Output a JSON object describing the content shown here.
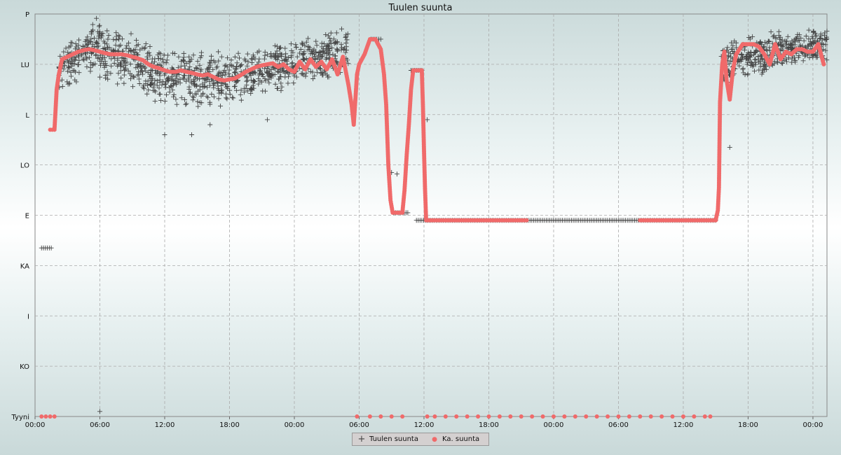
{
  "chart_data": {
    "type": "scatter",
    "title": "Tuulen suunta",
    "y_categories": [
      "Tyyni",
      "KO",
      "I",
      "KA",
      "E",
      "LO",
      "L",
      "LU",
      "P"
    ],
    "x_tick_labels": [
      "00:00",
      "06:00",
      "12:00",
      "18:00",
      "00:00",
      "06:00",
      "12:00",
      "18:00",
      "00:00",
      "06:00",
      "12:00",
      "18:00",
      "00:00"
    ],
    "x_unit": "hours from start",
    "xlim": [
      0,
      73.3
    ],
    "ylim": [
      0,
      8
    ],
    "grid": true,
    "legend_position": "bottom-center",
    "series": [
      {
        "name": "Tuulen suunta",
        "marker": "plus",
        "color": "#444444",
        "segments": [
          {
            "x": [
              0.6,
              1.5
            ],
            "y": [
              3.35,
              3.35
            ],
            "style": "flat"
          },
          {
            "x": [
              2.2,
              6.0
            ],
            "y": [
              6.9,
              7.45
            ],
            "style": "noisy",
            "spread": 0.55
          },
          {
            "x": [
              6.0,
              12.0
            ],
            "y": [
              7.3,
              6.75
            ],
            "style": "noisy",
            "spread": 0.6
          },
          {
            "x": [
              12.0,
              18.0
            ],
            "y": [
              6.75,
              6.7
            ],
            "style": "noisy",
            "spread": 0.6
          },
          {
            "x": [
              18.0,
              24.0
            ],
            "y": [
              6.7,
              7.0
            ],
            "style": "noisy",
            "spread": 0.5
          },
          {
            "x": [
              24.0,
              29.0
            ],
            "y": [
              7.0,
              7.3
            ],
            "style": "noisy",
            "spread": 0.5
          },
          {
            "x": [
              31.1,
              32.0
            ],
            "y": [
              7.5,
              7.5
            ],
            "style": "flat"
          },
          {
            "x": [
              33.2,
              34.5
            ],
            "y": [
              4.05,
              4.05
            ],
            "style": "flat"
          },
          {
            "x": [
              34.8,
              35.8
            ],
            "y": [
              6.88,
              6.88
            ],
            "style": "flat"
          },
          {
            "x": [
              35.3,
              63.0
            ],
            "y": [
              3.9,
              3.9
            ],
            "style": "flat"
          },
          {
            "x": [
              63.5,
              69.0
            ],
            "y": [
              7.0,
              7.3
            ],
            "style": "noisy",
            "spread": 0.45
          },
          {
            "x": [
              69.0,
              73.3
            ],
            "y": [
              7.3,
              7.4
            ],
            "style": "noisy",
            "spread": 0.35
          }
        ],
        "outliers": [
          {
            "x": 6.0,
            "y": 0.1
          },
          {
            "x": 12.0,
            "y": 5.6
          },
          {
            "x": 14.5,
            "y": 5.6
          },
          {
            "x": 16.2,
            "y": 5.8
          },
          {
            "x": 21.5,
            "y": 5.9
          },
          {
            "x": 64.3,
            "y": 5.35
          },
          {
            "x": 33.0,
            "y": 4.85
          },
          {
            "x": 33.5,
            "y": 4.82
          },
          {
            "x": 36.3,
            "y": 5.9
          }
        ]
      },
      {
        "name": "Ka. suunta",
        "marker": "dot",
        "color": "#f06a6a",
        "points": [
          [
            0.6,
            0.0
          ],
          [
            1.0,
            0.0
          ],
          [
            1.4,
            0.0
          ],
          [
            1.8,
            0.0
          ],
          [
            1.4,
            5.7
          ],
          [
            1.8,
            5.7
          ],
          [
            2.0,
            6.5
          ],
          [
            2.2,
            6.8
          ],
          [
            2.5,
            7.1
          ],
          [
            3.0,
            7.15
          ],
          [
            3.5,
            7.2
          ],
          [
            4.0,
            7.25
          ],
          [
            4.5,
            7.28
          ],
          [
            5.0,
            7.3
          ],
          [
            5.5,
            7.28
          ],
          [
            6.0,
            7.25
          ],
          [
            6.5,
            7.22
          ],
          [
            7.0,
            7.2
          ],
          [
            7.5,
            7.2
          ],
          [
            8.0,
            7.2
          ],
          [
            8.5,
            7.18
          ],
          [
            9.0,
            7.15
          ],
          [
            9.5,
            7.12
          ],
          [
            10.0,
            7.08
          ],
          [
            10.5,
            7.0
          ],
          [
            11.0,
            6.95
          ],
          [
            11.5,
            6.92
          ],
          [
            12.0,
            6.88
          ],
          [
            12.5,
            6.85
          ],
          [
            13.0,
            6.85
          ],
          [
            13.5,
            6.88
          ],
          [
            14.0,
            6.85
          ],
          [
            14.5,
            6.83
          ],
          [
            15.0,
            6.8
          ],
          [
            15.5,
            6.78
          ],
          [
            16.0,
            6.8
          ],
          [
            16.5,
            6.75
          ],
          [
            17.0,
            6.7
          ],
          [
            17.5,
            6.68
          ],
          [
            18.0,
            6.7
          ],
          [
            18.5,
            6.72
          ],
          [
            19.0,
            6.78
          ],
          [
            19.5,
            6.85
          ],
          [
            20.0,
            6.9
          ],
          [
            20.5,
            6.95
          ],
          [
            21.0,
            6.98
          ],
          [
            21.5,
            7.0
          ],
          [
            22.0,
            7.02
          ],
          [
            22.5,
            6.95
          ],
          [
            23.0,
            7.0
          ],
          [
            23.5,
            6.9
          ],
          [
            24.0,
            6.85
          ],
          [
            24.5,
            7.05
          ],
          [
            25.0,
            6.9
          ],
          [
            25.5,
            7.1
          ],
          [
            26.0,
            6.95
          ],
          [
            26.5,
            7.05
          ],
          [
            27.0,
            6.9
          ],
          [
            27.5,
            7.1
          ],
          [
            28.0,
            6.8
          ],
          [
            28.5,
            7.15
          ],
          [
            29.0,
            6.6
          ],
          [
            29.3,
            6.2
          ],
          [
            29.5,
            5.8
          ],
          [
            29.8,
            6.8
          ],
          [
            30.0,
            7.0
          ],
          [
            30.5,
            7.2
          ],
          [
            31.0,
            7.5
          ],
          [
            31.5,
            7.5
          ],
          [
            32.0,
            7.3
          ],
          [
            32.3,
            6.8
          ],
          [
            32.5,
            6.2
          ],
          [
            32.7,
            5.0
          ],
          [
            32.9,
            4.3
          ],
          [
            33.1,
            4.05
          ],
          [
            33.5,
            4.05
          ],
          [
            34.0,
            4.05
          ],
          [
            34.2,
            4.5
          ],
          [
            34.4,
            5.2
          ],
          [
            34.6,
            5.8
          ],
          [
            34.8,
            6.5
          ],
          [
            35.0,
            6.88
          ],
          [
            35.5,
            6.88
          ],
          [
            35.8,
            6.88
          ],
          [
            35.9,
            6.2
          ],
          [
            36.0,
            5.3
          ],
          [
            36.1,
            4.5
          ],
          [
            36.2,
            3.9
          ],
          [
            37.0,
            3.9
          ],
          [
            38.0,
            3.9
          ],
          [
            39.0,
            3.9
          ],
          [
            40.0,
            3.9
          ],
          [
            41.0,
            3.9
          ],
          [
            42.0,
            3.9
          ],
          [
            43.0,
            3.9
          ],
          [
            44.0,
            3.9
          ],
          [
            44.5,
            3.9
          ],
          [
            45.0,
            3.9
          ],
          [
            45.5,
            3.9
          ],
          [
            56.0,
            3.9
          ],
          [
            57.0,
            3.9
          ],
          [
            58.0,
            3.9
          ],
          [
            59.0,
            3.9
          ],
          [
            60.0,
            3.9
          ],
          [
            61.0,
            3.9
          ],
          [
            62.0,
            3.9
          ],
          [
            62.5,
            3.9
          ],
          [
            63.0,
            3.9
          ],
          [
            63.2,
            4.1
          ],
          [
            63.3,
            4.55
          ],
          [
            63.4,
            6.25
          ],
          [
            63.6,
            7.0
          ],
          [
            63.8,
            7.25
          ],
          [
            64.0,
            6.7
          ],
          [
            64.3,
            6.3
          ],
          [
            64.6,
            6.9
          ],
          [
            64.9,
            7.2
          ],
          [
            65.2,
            7.3
          ],
          [
            65.5,
            7.4
          ],
          [
            66.0,
            7.4
          ],
          [
            66.5,
            7.4
          ],
          [
            67.0,
            7.35
          ],
          [
            67.5,
            7.2
          ],
          [
            68.0,
            7.0
          ],
          [
            68.5,
            7.4
          ],
          [
            69.0,
            7.1
          ],
          [
            69.5,
            7.25
          ],
          [
            70.0,
            7.2
          ],
          [
            70.5,
            7.3
          ],
          [
            71.0,
            7.3
          ],
          [
            71.5,
            7.25
          ],
          [
            72.0,
            7.25
          ],
          [
            72.5,
            7.4
          ],
          [
            73.0,
            7.0
          ],
          [
            36.3,
            0.0
          ],
          [
            37.0,
            0.0
          ],
          [
            38.0,
            0.0
          ],
          [
            39.0,
            0.0
          ],
          [
            40.0,
            0.0
          ],
          [
            41.0,
            0.0
          ],
          [
            42.0,
            0.0
          ],
          [
            43.0,
            0.0
          ],
          [
            44.0,
            0.0
          ],
          [
            45.0,
            0.0
          ],
          [
            46.0,
            0.0
          ],
          [
            47.0,
            0.0
          ],
          [
            48.0,
            0.0
          ],
          [
            49.0,
            0.0
          ],
          [
            50.0,
            0.0
          ],
          [
            51.0,
            0.0
          ],
          [
            52.0,
            0.0
          ],
          [
            53.0,
            0.0
          ],
          [
            54.0,
            0.0
          ],
          [
            55.0,
            0.0
          ],
          [
            56.0,
            0.0
          ],
          [
            57.0,
            0.0
          ],
          [
            58.0,
            0.0
          ],
          [
            59.0,
            0.0
          ],
          [
            60.0,
            0.0
          ],
          [
            61.0,
            0.0
          ],
          [
            62.0,
            0.0
          ],
          [
            62.5,
            0.0
          ],
          [
            29.8,
            0.0
          ],
          [
            31.0,
            0.0
          ],
          [
            32.0,
            0.0
          ],
          [
            33.0,
            0.0
          ],
          [
            34.0,
            0.0
          ]
        ]
      }
    ]
  }
}
